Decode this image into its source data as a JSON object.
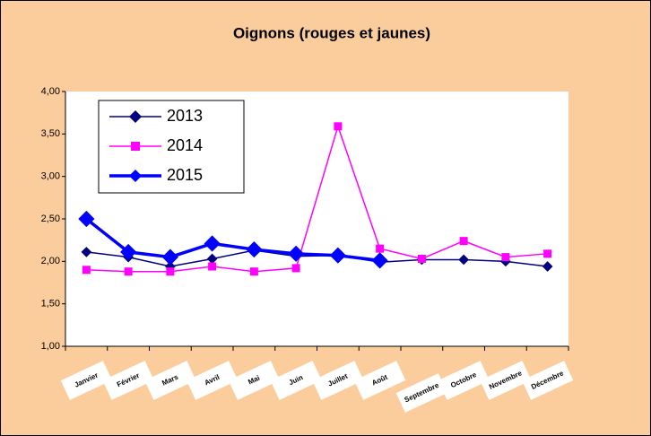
{
  "chart_data": {
    "type": "line",
    "title": "Oignons (rouges et jaunes)",
    "categories": [
      "Janvier",
      "Février",
      "Mars",
      "Avril",
      "Mai",
      "Juin",
      "Juillet",
      "Août",
      "Septembre",
      "Octobre",
      "Novembre",
      "Décembre"
    ],
    "series": [
      {
        "name": "2013",
        "color": "#000080",
        "marker": "diamond",
        "values": [
          2.11,
          2.05,
          1.94,
          2.03,
          2.13,
          2.06,
          2.07,
          1.99,
          2.02,
          2.02,
          2.0,
          1.94
        ]
      },
      {
        "name": "2014",
        "color": "#ff00ff",
        "marker": "square",
        "values": [
          1.9,
          1.88,
          1.88,
          1.94,
          1.88,
          1.92,
          3.59,
          2.15,
          2.03,
          2.24,
          2.05,
          2.09
        ]
      },
      {
        "name": "2015",
        "color": "#0000ff",
        "marker": "diamond",
        "values": [
          2.5,
          2.11,
          2.05,
          2.21,
          2.14,
          2.09,
          2.07,
          2.01,
          null,
          null,
          null,
          null
        ]
      }
    ],
    "ylim": [
      1,
      4
    ],
    "yticks": [
      {
        "value": 1,
        "label": "1,00"
      },
      {
        "value": 1.5,
        "label": "1,50"
      },
      {
        "value": 2,
        "label": "2,00"
      },
      {
        "value": 2.5,
        "label": "2,50"
      },
      {
        "value": 3,
        "label": "3,00"
      },
      {
        "value": 3.5,
        "label": "3,50"
      },
      {
        "value": 4,
        "label": "4,00"
      }
    ],
    "grid": false,
    "legend": "top-left"
  }
}
